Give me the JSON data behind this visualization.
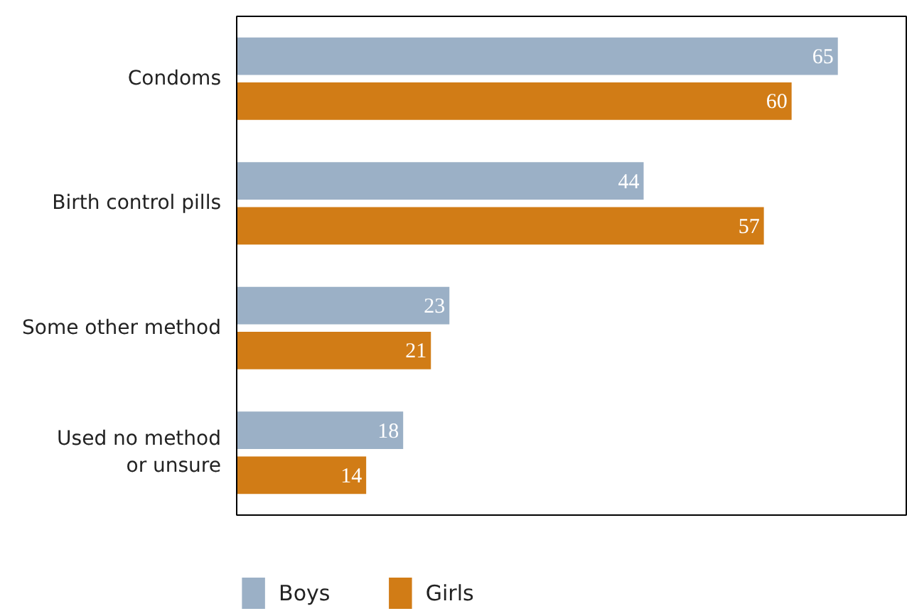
{
  "chart_data": {
    "type": "bar",
    "orientation": "horizontal",
    "categories": [
      "Condoms",
      "Birth control pills",
      "Some other method",
      "Used no method or unsure"
    ],
    "series": [
      {
        "name": "Boys",
        "color": "#9bb0c6",
        "values": [
          65,
          44,
          23,
          18
        ]
      },
      {
        "name": "Girls",
        "color": "#d17c16",
        "values": [
          60,
          57,
          21,
          14
        ]
      }
    ],
    "xlim": [
      0,
      72.4
    ],
    "data_labels": true,
    "legend": "bottom",
    "tick_labels": "y",
    "grid": false
  }
}
